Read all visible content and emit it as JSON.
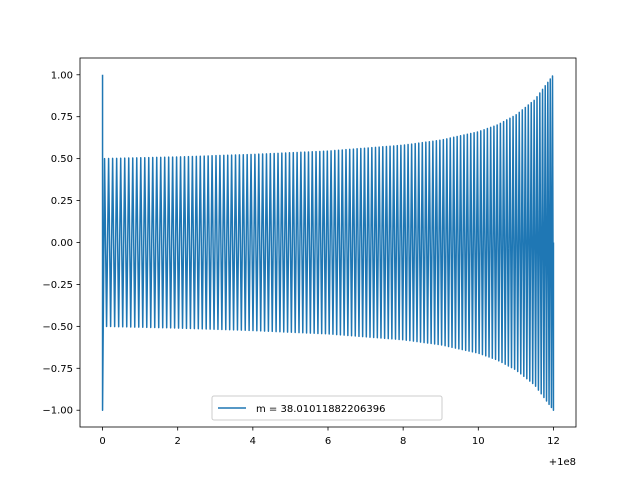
{
  "chart_data": {
    "type": "line",
    "title": "",
    "xlabel": "",
    "ylabel": "",
    "x_offset_label": "+1e8",
    "xlim": [
      -0.6,
      12.6
    ],
    "ylim": [
      -1.1,
      1.1
    ],
    "x_ticks": [
      0,
      2,
      4,
      6,
      8,
      10,
      12
    ],
    "x_tick_labels": [
      "0",
      "2",
      "4",
      "6",
      "8",
      "10",
      "12"
    ],
    "y_ticks": [
      1.0,
      0.75,
      0.5,
      0.25,
      0.0,
      -0.25,
      -0.5,
      -0.75,
      -1.0
    ],
    "y_tick_labels": [
      "1.00",
      "0.75",
      "0.50",
      "0.25",
      "0.00",
      "−0.25",
      "−0.50",
      "−0.75",
      "−1.00"
    ],
    "grid": false,
    "legend_position": "lower center",
    "series": [
      {
        "name": "m = 38.01011882206396",
        "color": "#1f77b4",
        "x_range": [
          0,
          12
        ],
        "initial_spike": 1.0,
        "envelope": {
          "x": [
            0,
            2,
            4,
            6,
            8,
            9,
            10,
            10.5,
            11,
            11.5,
            12
          ],
          "amplitude": [
            0.5,
            0.51,
            0.525,
            0.545,
            0.58,
            0.61,
            0.66,
            0.7,
            0.76,
            0.85,
            1.0
          ]
        },
        "oscillation_count": 125
      }
    ]
  }
}
